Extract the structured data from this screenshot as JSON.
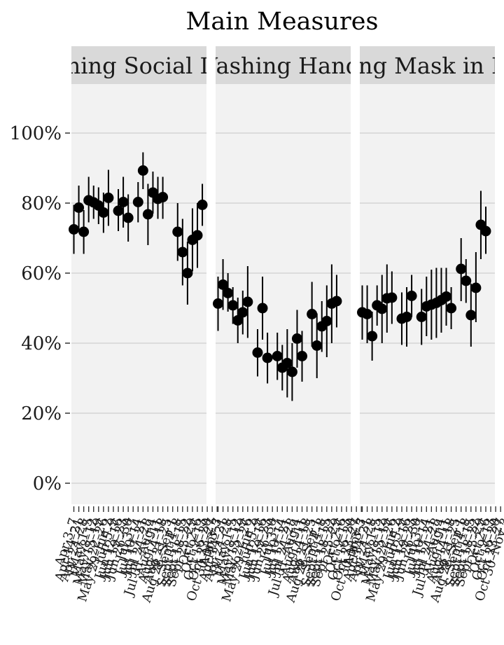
{
  "chart_data": {
    "type": "scatter",
    "title": "Main Measures",
    "xlabel": "",
    "ylabel": "",
    "ylim": [
      -0.06,
      1.14
    ],
    "y_ticks": [
      0,
      0.2,
      0.4,
      0.6,
      0.8,
      1.0
    ],
    "y_tick_labels": [
      "0%",
      "20%",
      "40%",
      "60%",
      "80%",
      "100%"
    ],
    "grid": true,
    "legend": "none",
    "error_bars": true,
    "colors": {
      "panel_bg": "#f2f2f2",
      "strip_bg": "#d9d9d9",
      "grid": "#d4d4d4",
      "points": "#000000"
    },
    "x_labels": [
      "Apr 3–7",
      "Apr 14–21",
      "Apr 24–28",
      "May 1–5",
      "May 8–12",
      "May 15–19",
      "May 22–26",
      "May 29–Jun 2",
      "Jun 5–9",
      "Jun 12–16",
      "Jun 19–23",
      "Jun 26–30",
      "Jul 3–7",
      "Jul 10–14",
      "Jul 17–21",
      "Jul 24–28",
      "Jul 31–Aug 4",
      "Aug 7–11",
      "Aug 14–18",
      "Aug 21–25",
      "Aug 28–Sep 1",
      "Sept 4–8",
      "Sept 11–15",
      "Sept 18–22",
      "Sept 25–29",
      "Oct 2–6",
      "Oct 9–13",
      "Oct 16–20",
      "Oct 23–27",
      "Oct 30–Nov 3"
    ],
    "panels": [
      {
        "name": "Maintaining Social Distance",
        "points": [
          {
            "x": 0,
            "y": 0.725,
            "lo": 0.655,
            "hi": 0.795
          },
          {
            "x": 1,
            "y": 0.787,
            "lo": 0.725,
            "hi": 0.85
          },
          {
            "x": 2,
            "y": 0.718,
            "lo": 0.655,
            "hi": 0.78
          },
          {
            "x": 3,
            "y": 0.808,
            "lo": 0.745,
            "hi": 0.875
          },
          {
            "x": 4,
            "y": 0.802,
            "lo": 0.755,
            "hi": 0.85
          },
          {
            "x": 5,
            "y": 0.793,
            "lo": 0.74,
            "hi": 0.845
          },
          {
            "x": 6,
            "y": 0.773,
            "lo": 0.715,
            "hi": 0.83
          },
          {
            "x": 7,
            "y": 0.815,
            "lo": 0.735,
            "hi": 0.895
          },
          {
            "x": 9,
            "y": 0.778,
            "lo": 0.72,
            "hi": 0.84
          },
          {
            "x": 10,
            "y": 0.803,
            "lo": 0.73,
            "hi": 0.875
          },
          {
            "x": 11,
            "y": 0.758,
            "lo": 0.69,
            "hi": 0.825
          },
          {
            "x": 13,
            "y": 0.803,
            "lo": 0.745,
            "hi": 0.86
          },
          {
            "x": 14,
            "y": 0.893,
            "lo": 0.84,
            "hi": 0.945
          },
          {
            "x": 15,
            "y": 0.768,
            "lo": 0.68,
            "hi": 0.855
          },
          {
            "x": 16,
            "y": 0.83,
            "lo": 0.77,
            "hi": 0.89
          },
          {
            "x": 17,
            "y": 0.812,
            "lo": 0.755,
            "hi": 0.875
          },
          {
            "x": 18,
            "y": 0.817,
            "lo": 0.755,
            "hi": 0.875
          },
          {
            "x": 21,
            "y": 0.718,
            "lo": 0.635,
            "hi": 0.8
          },
          {
            "x": 22,
            "y": 0.66,
            "lo": 0.565,
            "hi": 0.755
          },
          {
            "x": 23,
            "y": 0.6,
            "lo": 0.51,
            "hi": 0.69
          },
          {
            "x": 24,
            "y": 0.695,
            "lo": 0.605,
            "hi": 0.785
          },
          {
            "x": 25,
            "y": 0.708,
            "lo": 0.615,
            "hi": 0.8
          },
          {
            "x": 26,
            "y": 0.795,
            "lo": 0.735,
            "hi": 0.855
          }
        ]
      },
      {
        "name": "Washing Hands",
        "points": [
          {
            "x": 0,
            "y": 0.513,
            "lo": 0.435,
            "hi": 0.59
          },
          {
            "x": 1,
            "y": 0.567,
            "lo": 0.495,
            "hi": 0.64
          },
          {
            "x": 2,
            "y": 0.543,
            "lo": 0.49,
            "hi": 0.6
          },
          {
            "x": 3,
            "y": 0.508,
            "lo": 0.455,
            "hi": 0.56
          },
          {
            "x": 4,
            "y": 0.465,
            "lo": 0.4,
            "hi": 0.53
          },
          {
            "x": 5,
            "y": 0.488,
            "lo": 0.425,
            "hi": 0.55
          },
          {
            "x": 6,
            "y": 0.518,
            "lo": 0.415,
            "hi": 0.62
          },
          {
            "x": 8,
            "y": 0.373,
            "lo": 0.305,
            "hi": 0.44
          },
          {
            "x": 9,
            "y": 0.5,
            "lo": 0.41,
            "hi": 0.59
          },
          {
            "x": 10,
            "y": 0.358,
            "lo": 0.285,
            "hi": 0.43
          },
          {
            "x": 12,
            "y": 0.363,
            "lo": 0.295,
            "hi": 0.43
          },
          {
            "x": 13,
            "y": 0.33,
            "lo": 0.265,
            "hi": 0.395
          },
          {
            "x": 14,
            "y": 0.343,
            "lo": 0.245,
            "hi": 0.44
          },
          {
            "x": 15,
            "y": 0.318,
            "lo": 0.235,
            "hi": 0.4
          },
          {
            "x": 16,
            "y": 0.413,
            "lo": 0.33,
            "hi": 0.495
          },
          {
            "x": 17,
            "y": 0.363,
            "lo": 0.29,
            "hi": 0.435
          },
          {
            "x": 19,
            "y": 0.483,
            "lo": 0.39,
            "hi": 0.575
          },
          {
            "x": 20,
            "y": 0.393,
            "lo": 0.3,
            "hi": 0.485
          },
          {
            "x": 21,
            "y": 0.448,
            "lo": 0.375,
            "hi": 0.52
          },
          {
            "x": 22,
            "y": 0.463,
            "lo": 0.36,
            "hi": 0.565
          },
          {
            "x": 23,
            "y": 0.513,
            "lo": 0.4,
            "hi": 0.625
          },
          {
            "x": 24,
            "y": 0.52,
            "lo": 0.445,
            "hi": 0.595
          }
        ]
      },
      {
        "name": "Wearing Mask in Public",
        "points": [
          {
            "x": 0,
            "y": 0.488,
            "lo": 0.41,
            "hi": 0.565
          },
          {
            "x": 1,
            "y": 0.483,
            "lo": 0.4,
            "hi": 0.565
          },
          {
            "x": 2,
            "y": 0.42,
            "lo": 0.35,
            "hi": 0.49
          },
          {
            "x": 3,
            "y": 0.508,
            "lo": 0.45,
            "hi": 0.565
          },
          {
            "x": 4,
            "y": 0.498,
            "lo": 0.4,
            "hi": 0.595
          },
          {
            "x": 5,
            "y": 0.528,
            "lo": 0.43,
            "hi": 0.625
          },
          {
            "x": 6,
            "y": 0.53,
            "lo": 0.455,
            "hi": 0.605
          },
          {
            "x": 8,
            "y": 0.47,
            "lo": 0.395,
            "hi": 0.545
          },
          {
            "x": 9,
            "y": 0.475,
            "lo": 0.39,
            "hi": 0.56
          },
          {
            "x": 10,
            "y": 0.535,
            "lo": 0.475,
            "hi": 0.595
          },
          {
            "x": 12,
            "y": 0.475,
            "lo": 0.395,
            "hi": 0.555
          },
          {
            "x": 13,
            "y": 0.505,
            "lo": 0.42,
            "hi": 0.59
          },
          {
            "x": 14,
            "y": 0.51,
            "lo": 0.41,
            "hi": 0.61
          },
          {
            "x": 15,
            "y": 0.515,
            "lo": 0.415,
            "hi": 0.615
          },
          {
            "x": 16,
            "y": 0.523,
            "lo": 0.43,
            "hi": 0.615
          },
          {
            "x": 17,
            "y": 0.533,
            "lo": 0.45,
            "hi": 0.615
          },
          {
            "x": 18,
            "y": 0.5,
            "lo": 0.44,
            "hi": 0.56
          },
          {
            "x": 20,
            "y": 0.612,
            "lo": 0.52,
            "hi": 0.7
          },
          {
            "x": 21,
            "y": 0.578,
            "lo": 0.515,
            "hi": 0.64
          },
          {
            "x": 22,
            "y": 0.48,
            "lo": 0.39,
            "hi": 0.57
          },
          {
            "x": 23,
            "y": 0.558,
            "lo": 0.46,
            "hi": 0.66
          },
          {
            "x": 24,
            "y": 0.738,
            "lo": 0.64,
            "hi": 0.835
          },
          {
            "x": 25,
            "y": 0.72,
            "lo": 0.655,
            "hi": 0.79
          }
        ]
      }
    ]
  }
}
